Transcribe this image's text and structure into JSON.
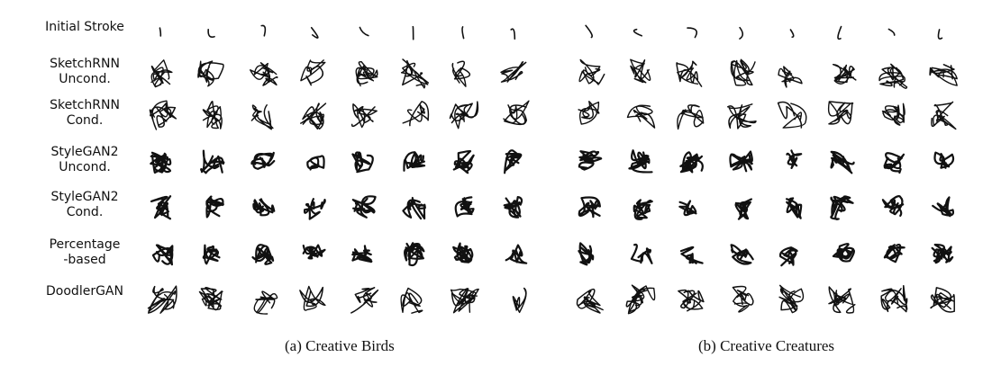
{
  "figure": {
    "row_labels": [
      "Initial Stroke",
      "SketchRNN\nUncond.",
      "SketchRNN\nCond.",
      "StyleGAN2\nUncond.",
      "StyleGAN2\nCond.",
      "Percentage\n-based",
      "DoodlerGAN"
    ],
    "captions": {
      "a": "(a) Creative Birds",
      "b": "(b) Creative Creatures"
    },
    "grid": {
      "rows": 7,
      "columns_per_panel": 8,
      "panels": [
        "birds",
        "creatures"
      ]
    }
  }
}
